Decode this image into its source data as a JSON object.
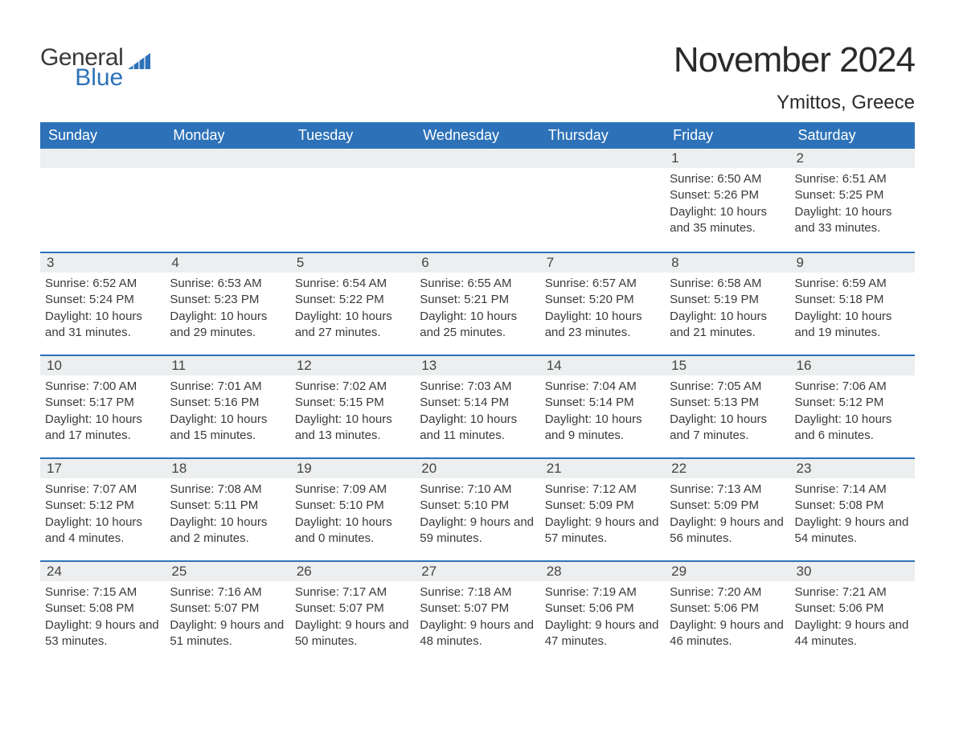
{
  "logo": {
    "text1": "General",
    "text2": "Blue",
    "icon_color": "#2d72b8"
  },
  "title": "November 2024",
  "location": "Ymittos, Greece",
  "colors": {
    "header_bg": "#2d72b8",
    "header_text": "#ffffff",
    "daynum_bg": "#eceeef",
    "row_border": "#2d72b8",
    "body_text": "#3a3a3a"
  },
  "daysOfWeek": [
    "Sunday",
    "Monday",
    "Tuesday",
    "Wednesday",
    "Thursday",
    "Friday",
    "Saturday"
  ],
  "weeks": [
    [
      null,
      null,
      null,
      null,
      null,
      {
        "n": "1",
        "sunrise": "6:50 AM",
        "sunset": "5:26 PM",
        "daylight": "10 hours and 35 minutes."
      },
      {
        "n": "2",
        "sunrise": "6:51 AM",
        "sunset": "5:25 PM",
        "daylight": "10 hours and 33 minutes."
      }
    ],
    [
      {
        "n": "3",
        "sunrise": "6:52 AM",
        "sunset": "5:24 PM",
        "daylight": "10 hours and 31 minutes."
      },
      {
        "n": "4",
        "sunrise": "6:53 AM",
        "sunset": "5:23 PM",
        "daylight": "10 hours and 29 minutes."
      },
      {
        "n": "5",
        "sunrise": "6:54 AM",
        "sunset": "5:22 PM",
        "daylight": "10 hours and 27 minutes."
      },
      {
        "n": "6",
        "sunrise": "6:55 AM",
        "sunset": "5:21 PM",
        "daylight": "10 hours and 25 minutes."
      },
      {
        "n": "7",
        "sunrise": "6:57 AM",
        "sunset": "5:20 PM",
        "daylight": "10 hours and 23 minutes."
      },
      {
        "n": "8",
        "sunrise": "6:58 AM",
        "sunset": "5:19 PM",
        "daylight": "10 hours and 21 minutes."
      },
      {
        "n": "9",
        "sunrise": "6:59 AM",
        "sunset": "5:18 PM",
        "daylight": "10 hours and 19 minutes."
      }
    ],
    [
      {
        "n": "10",
        "sunrise": "7:00 AM",
        "sunset": "5:17 PM",
        "daylight": "10 hours and 17 minutes."
      },
      {
        "n": "11",
        "sunrise": "7:01 AM",
        "sunset": "5:16 PM",
        "daylight": "10 hours and 15 minutes."
      },
      {
        "n": "12",
        "sunrise": "7:02 AM",
        "sunset": "5:15 PM",
        "daylight": "10 hours and 13 minutes."
      },
      {
        "n": "13",
        "sunrise": "7:03 AM",
        "sunset": "5:14 PM",
        "daylight": "10 hours and 11 minutes."
      },
      {
        "n": "14",
        "sunrise": "7:04 AM",
        "sunset": "5:14 PM",
        "daylight": "10 hours and 9 minutes."
      },
      {
        "n": "15",
        "sunrise": "7:05 AM",
        "sunset": "5:13 PM",
        "daylight": "10 hours and 7 minutes."
      },
      {
        "n": "16",
        "sunrise": "7:06 AM",
        "sunset": "5:12 PM",
        "daylight": "10 hours and 6 minutes."
      }
    ],
    [
      {
        "n": "17",
        "sunrise": "7:07 AM",
        "sunset": "5:12 PM",
        "daylight": "10 hours and 4 minutes."
      },
      {
        "n": "18",
        "sunrise": "7:08 AM",
        "sunset": "5:11 PM",
        "daylight": "10 hours and 2 minutes."
      },
      {
        "n": "19",
        "sunrise": "7:09 AM",
        "sunset": "5:10 PM",
        "daylight": "10 hours and 0 minutes."
      },
      {
        "n": "20",
        "sunrise": "7:10 AM",
        "sunset": "5:10 PM",
        "daylight": "9 hours and 59 minutes."
      },
      {
        "n": "21",
        "sunrise": "7:12 AM",
        "sunset": "5:09 PM",
        "daylight": "9 hours and 57 minutes."
      },
      {
        "n": "22",
        "sunrise": "7:13 AM",
        "sunset": "5:09 PM",
        "daylight": "9 hours and 56 minutes."
      },
      {
        "n": "23",
        "sunrise": "7:14 AM",
        "sunset": "5:08 PM",
        "daylight": "9 hours and 54 minutes."
      }
    ],
    [
      {
        "n": "24",
        "sunrise": "7:15 AM",
        "sunset": "5:08 PM",
        "daylight": "9 hours and 53 minutes."
      },
      {
        "n": "25",
        "sunrise": "7:16 AM",
        "sunset": "5:07 PM",
        "daylight": "9 hours and 51 minutes."
      },
      {
        "n": "26",
        "sunrise": "7:17 AM",
        "sunset": "5:07 PM",
        "daylight": "9 hours and 50 minutes."
      },
      {
        "n": "27",
        "sunrise": "7:18 AM",
        "sunset": "5:07 PM",
        "daylight": "9 hours and 48 minutes."
      },
      {
        "n": "28",
        "sunrise": "7:19 AM",
        "sunset": "5:06 PM",
        "daylight": "9 hours and 47 minutes."
      },
      {
        "n": "29",
        "sunrise": "7:20 AM",
        "sunset": "5:06 PM",
        "daylight": "9 hours and 46 minutes."
      },
      {
        "n": "30",
        "sunrise": "7:21 AM",
        "sunset": "5:06 PM",
        "daylight": "9 hours and 44 minutes."
      }
    ]
  ],
  "labels": {
    "sunrise": "Sunrise: ",
    "sunset": "Sunset: ",
    "daylight": "Daylight: "
  }
}
